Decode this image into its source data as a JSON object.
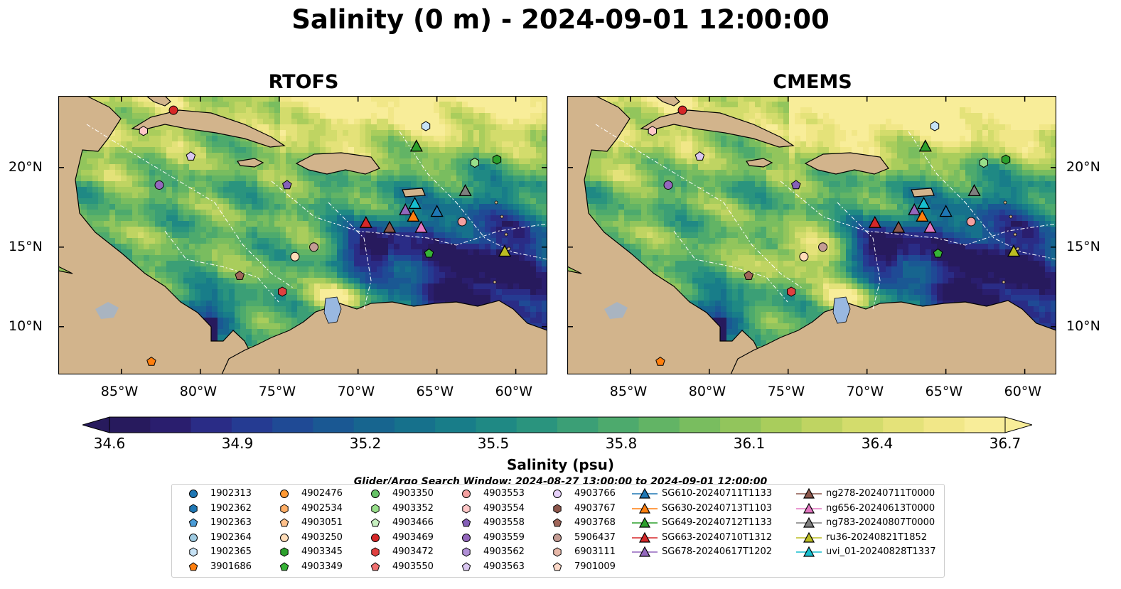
{
  "title": "Salinity (0 m) - 2024-09-01 12:00:00",
  "panels": [
    {
      "title": "RTOFS",
      "model": "rtofs"
    },
    {
      "title": "CMEMS",
      "model": "cmems"
    }
  ],
  "axes": {
    "lon_ticks": [
      "85°W",
      "80°W",
      "75°W",
      "70°W",
      "65°W",
      "60°W"
    ],
    "lat_ticks": [
      "20°N",
      "15°N",
      "10°N"
    ]
  },
  "colorbar": {
    "label": "Salinity (psu)",
    "ticks": [
      "34.6",
      "34.9",
      "35.2",
      "35.5",
      "35.8",
      "36.1",
      "36.4",
      "36.7"
    ],
    "vmin": 34.6,
    "vmax": 36.7,
    "levels": 22
  },
  "search_window": "Glider/Argo Search Window: 2024-08-27 13:00:00 to 2024-09-01 12:00:00",
  "legend": {
    "columns": [
      [
        {
          "label": "1902313",
          "marker": "circle",
          "color": "#1f77b4"
        },
        {
          "label": "1902362",
          "marker": "hexagon",
          "color": "#1f77b4"
        },
        {
          "label": "1902363",
          "marker": "pentagon",
          "color": "#4a9bd6"
        },
        {
          "label": "1902364",
          "marker": "circle",
          "color": "#9ecae1"
        },
        {
          "label": "1902365",
          "marker": "hexagon",
          "color": "#c6e2f5"
        },
        {
          "label": "3901686",
          "marker": "pentagon",
          "color": "#ff7f0e"
        }
      ],
      [
        {
          "label": "4902476",
          "marker": "circle",
          "color": "#ff9933"
        },
        {
          "label": "4902534",
          "marker": "hexagon",
          "color": "#ffae66"
        },
        {
          "label": "4903051",
          "marker": "pentagon",
          "color": "#ffc08a"
        },
        {
          "label": "4903250",
          "marker": "circle",
          "color": "#ffdcb8"
        },
        {
          "label": "4903345",
          "marker": "hexagon",
          "color": "#2ca02c"
        },
        {
          "label": "4903349",
          "marker": "pentagon",
          "color": "#36b336"
        }
      ],
      [
        {
          "label": "4903350",
          "marker": "circle",
          "color": "#66c266"
        },
        {
          "label": "4903352",
          "marker": "hexagon",
          "color": "#98df8a"
        },
        {
          "label": "4903466",
          "marker": "pentagon",
          "color": "#c7f0c0"
        },
        {
          "label": "4903469",
          "marker": "circle",
          "color": "#d62728"
        },
        {
          "label": "4903472",
          "marker": "hexagon",
          "color": "#e04040"
        },
        {
          "label": "4903550",
          "marker": "pentagon",
          "color": "#f07070"
        }
      ],
      [
        {
          "label": "4903553",
          "marker": "circle",
          "color": "#f4a0a0"
        },
        {
          "label": "4903554",
          "marker": "hexagon",
          "color": "#ffc7c7"
        },
        {
          "label": "4903558",
          "marker": "pentagon",
          "color": "#8560b8"
        },
        {
          "label": "4903559",
          "marker": "circle",
          "color": "#9467bd"
        },
        {
          "label": "4903562",
          "marker": "hexagon",
          "color": "#b08fd6"
        },
        {
          "label": "4903563",
          "marker": "pentagon",
          "color": "#d9c6f0"
        }
      ],
      [
        {
          "label": "4903766",
          "marker": "circle",
          "color": "#e6d0fa"
        },
        {
          "label": "4903767",
          "marker": "hexagon",
          "color": "#8c564b"
        },
        {
          "label": "4903768",
          "marker": "pentagon",
          "color": "#a0665a"
        },
        {
          "label": "5906437",
          "marker": "circle",
          "color": "#c49c94"
        },
        {
          "label": "6903111",
          "marker": "hexagon",
          "color": "#e7b8a8"
        },
        {
          "label": "7901009",
          "marker": "pentagon",
          "color": "#fcd8c8"
        }
      ],
      [
        {
          "label": "SG610-20240711T1133",
          "marker": "triangle",
          "color": "#1f77b4"
        },
        {
          "label": "SG630-20240713T1103",
          "marker": "triangle",
          "color": "#ff7f0e"
        },
        {
          "label": "SG649-20240712T1133",
          "marker": "triangle",
          "color": "#2ca02c"
        },
        {
          "label": "SG663-20240710T1312",
          "marker": "triangle",
          "color": "#d62728"
        },
        {
          "label": "SG678-20240617T1202",
          "marker": "triangle",
          "color": "#9467bd"
        }
      ],
      [
        {
          "label": "ng278-20240711T0000",
          "marker": "triangle",
          "color": "#8c564b"
        },
        {
          "label": "ng656-20240613T0000",
          "marker": "triangle",
          "color": "#e377c2"
        },
        {
          "label": "ng783-20240807T0000",
          "marker": "triangle",
          "color": "#7f7f7f"
        },
        {
          "label": "ru36-20240821T1852",
          "marker": "triangle",
          "color": "#bcbd22"
        },
        {
          "label": "uvi_01-20240828T1337",
          "marker": "triangle",
          "color": "#17becf"
        }
      ]
    ]
  },
  "chart_data": [
    {
      "type": "heatmap",
      "title": "RTOFS",
      "xlabel": "",
      "ylabel": "",
      "xlim": [
        -89,
        -58
      ],
      "ylim": [
        7,
        24.5
      ],
      "variable": "Salinity (psu)",
      "depth": "0 m",
      "valid_time": "2024-09-01 12:00:00",
      "color_range": [
        34.6,
        36.7
      ],
      "markers": [
        {
          "id": "3901686",
          "lon": -83.1,
          "lat": 7.8
        },
        {
          "id": "4903469",
          "lon": -81.7,
          "lat": 23.6
        },
        {
          "id": "4903554",
          "lon": -83.6,
          "lat": 22.3
        },
        {
          "id": "4903563",
          "lon": -80.6,
          "lat": 20.7
        },
        {
          "id": "4903559",
          "lon": -82.6,
          "lat": 18.9
        },
        {
          "id": "4903250",
          "lon": -74.0,
          "lat": 14.4
        },
        {
          "id": "5906437",
          "lon": -72.8,
          "lat": 15.0
        },
        {
          "id": "4903768",
          "lon": -77.5,
          "lat": 13.2
        },
        {
          "id": "4903472",
          "lon": -74.8,
          "lat": 12.2
        },
        {
          "id": "4903558",
          "lon": -74.5,
          "lat": 18.9
        },
        {
          "id": "1902365",
          "lon": -65.7,
          "lat": 22.6
        },
        {
          "id": "4903352",
          "lon": -62.6,
          "lat": 20.3
        },
        {
          "id": "4903345",
          "lon": -61.2,
          "lat": 20.5
        },
        {
          "id": "4903349",
          "lon": -65.5,
          "lat": 14.6
        },
        {
          "id": "4903553",
          "lon": -63.4,
          "lat": 16.6
        },
        {
          "id": "SG663-20240710T1312",
          "lon": -69.5,
          "lat": 16.5
        },
        {
          "id": "ng278-20240711T0000",
          "lon": -68.0,
          "lat": 16.2
        },
        {
          "id": "SG678-20240617T1202",
          "lon": -67.0,
          "lat": 17.3
        },
        {
          "id": "SG630-20240713T1103",
          "lon": -66.5,
          "lat": 16.9
        },
        {
          "id": "ng656-20240613T0000",
          "lon": -66.0,
          "lat": 16.2
        },
        {
          "id": "uvi_01-20240828T1337",
          "lon": -66.4,
          "lat": 17.7
        },
        {
          "id": "SG610-20240711T1133",
          "lon": -65.0,
          "lat": 17.2
        },
        {
          "id": "ng783-20240807T0000",
          "lon": -63.2,
          "lat": 18.5
        },
        {
          "id": "SG649-20240712T1133",
          "lon": -66.3,
          "lat": 21.3
        },
        {
          "id": "ru36-20240821T1852",
          "lon": -60.7,
          "lat": 14.7
        }
      ]
    },
    {
      "type": "heatmap",
      "title": "CMEMS",
      "xlabel": "",
      "ylabel": "",
      "xlim": [
        -89,
        -58
      ],
      "ylim": [
        7,
        24.5
      ],
      "variable": "Salinity (psu)",
      "depth": "0 m",
      "valid_time": "2024-09-01 12:00:00",
      "color_range": [
        34.6,
        36.7
      ],
      "markers": "same as RTOFS"
    }
  ]
}
